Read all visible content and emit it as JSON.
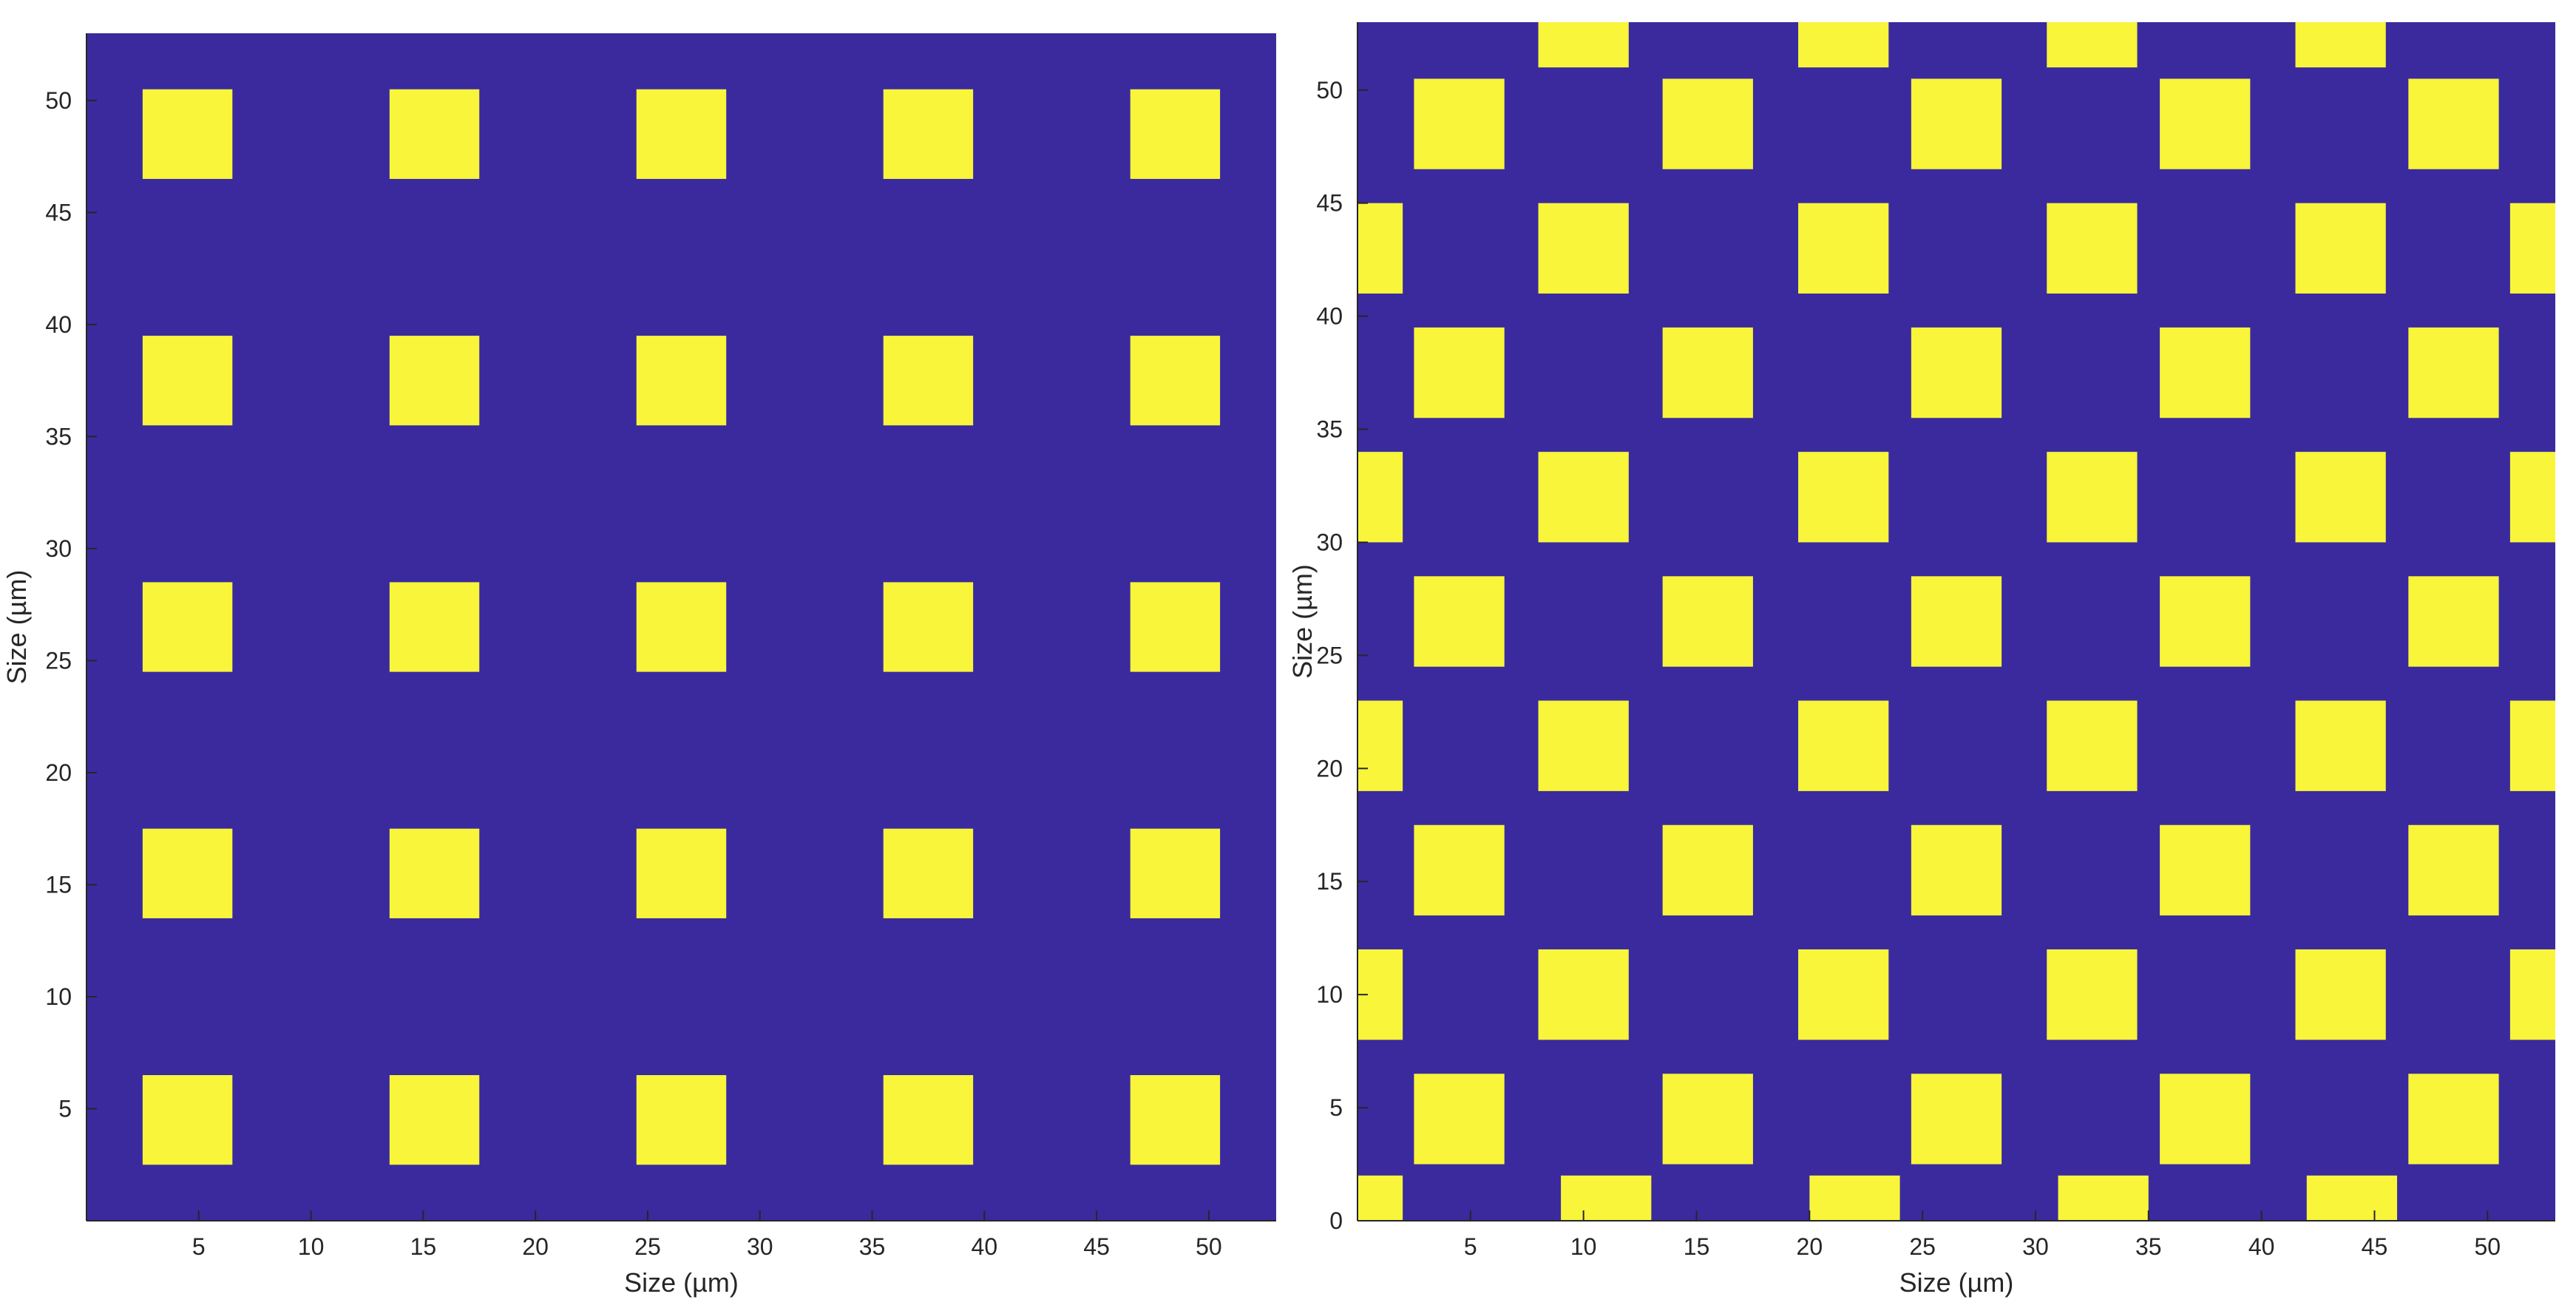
{
  "colors": {
    "background": "#3a2a9e",
    "square": "#f8f53b",
    "text": "#262626"
  },
  "chart_data": [
    {
      "type": "heatmap",
      "title": "",
      "xlabel": "Size (µm)",
      "ylabel": "Size (µm)",
      "xlim": [
        0,
        53
      ],
      "ylim": [
        0,
        53
      ],
      "xticks": [
        5,
        10,
        15,
        20,
        25,
        30,
        35,
        40,
        45,
        50
      ],
      "yticks": [
        5,
        10,
        15,
        20,
        25,
        30,
        35,
        40,
        45,
        50
      ],
      "pattern": "square lattice",
      "square_size": 4,
      "pitch": 11,
      "centers_x": [
        4.5,
        15.5,
        26.5,
        37.5,
        48.5
      ],
      "centers_y": [
        4.5,
        15.5,
        26.5,
        37.5,
        48.5
      ]
    },
    {
      "type": "heatmap",
      "title": "",
      "xlabel": "Size (µm)",
      "ylabel": "Size (µm)",
      "xlim": [
        0,
        53
      ],
      "ylim": [
        0,
        53
      ],
      "xticks": [
        5,
        10,
        15,
        20,
        25,
        30,
        35,
        40,
        45,
        50
      ],
      "yticks": [
        0,
        5,
        10,
        15,
        20,
        25,
        30,
        35,
        40,
        45,
        50
      ],
      "pattern": "staggered lattice",
      "square_size": 4,
      "pitch_x": 11,
      "row_spacing": 5.5,
      "rows": [
        {
          "y": 0,
          "centers_x": [
            0,
            11,
            22,
            33,
            44
          ]
        },
        {
          "y": 4.5,
          "centers_x": [
            4.5,
            15.5,
            26.5,
            37.5,
            48.5
          ]
        },
        {
          "y": 10,
          "centers_x": [
            0,
            10,
            21.5,
            32.5,
            43.5,
            53
          ]
        },
        {
          "y": 15.5,
          "centers_x": [
            4.5,
            15.5,
            26.5,
            37.5,
            48.5
          ]
        },
        {
          "y": 21,
          "centers_x": [
            0,
            10,
            21.5,
            32.5,
            43.5,
            53
          ]
        },
        {
          "y": 26.5,
          "centers_x": [
            4.5,
            15.5,
            26.5,
            37.5,
            48.5
          ]
        },
        {
          "y": 32,
          "centers_x": [
            0,
            10,
            21.5,
            32.5,
            43.5,
            53
          ]
        },
        {
          "y": 37.5,
          "centers_x": [
            4.5,
            15.5,
            26.5,
            37.5,
            48.5
          ]
        },
        {
          "y": 43,
          "centers_x": [
            0,
            10,
            21.5,
            32.5,
            43.5,
            53
          ]
        },
        {
          "y": 48.5,
          "centers_x": [
            4.5,
            15.5,
            26.5,
            37.5,
            48.5
          ]
        },
        {
          "y": 53,
          "centers_x": [
            10,
            21.5,
            32.5,
            43.5
          ]
        }
      ]
    }
  ]
}
